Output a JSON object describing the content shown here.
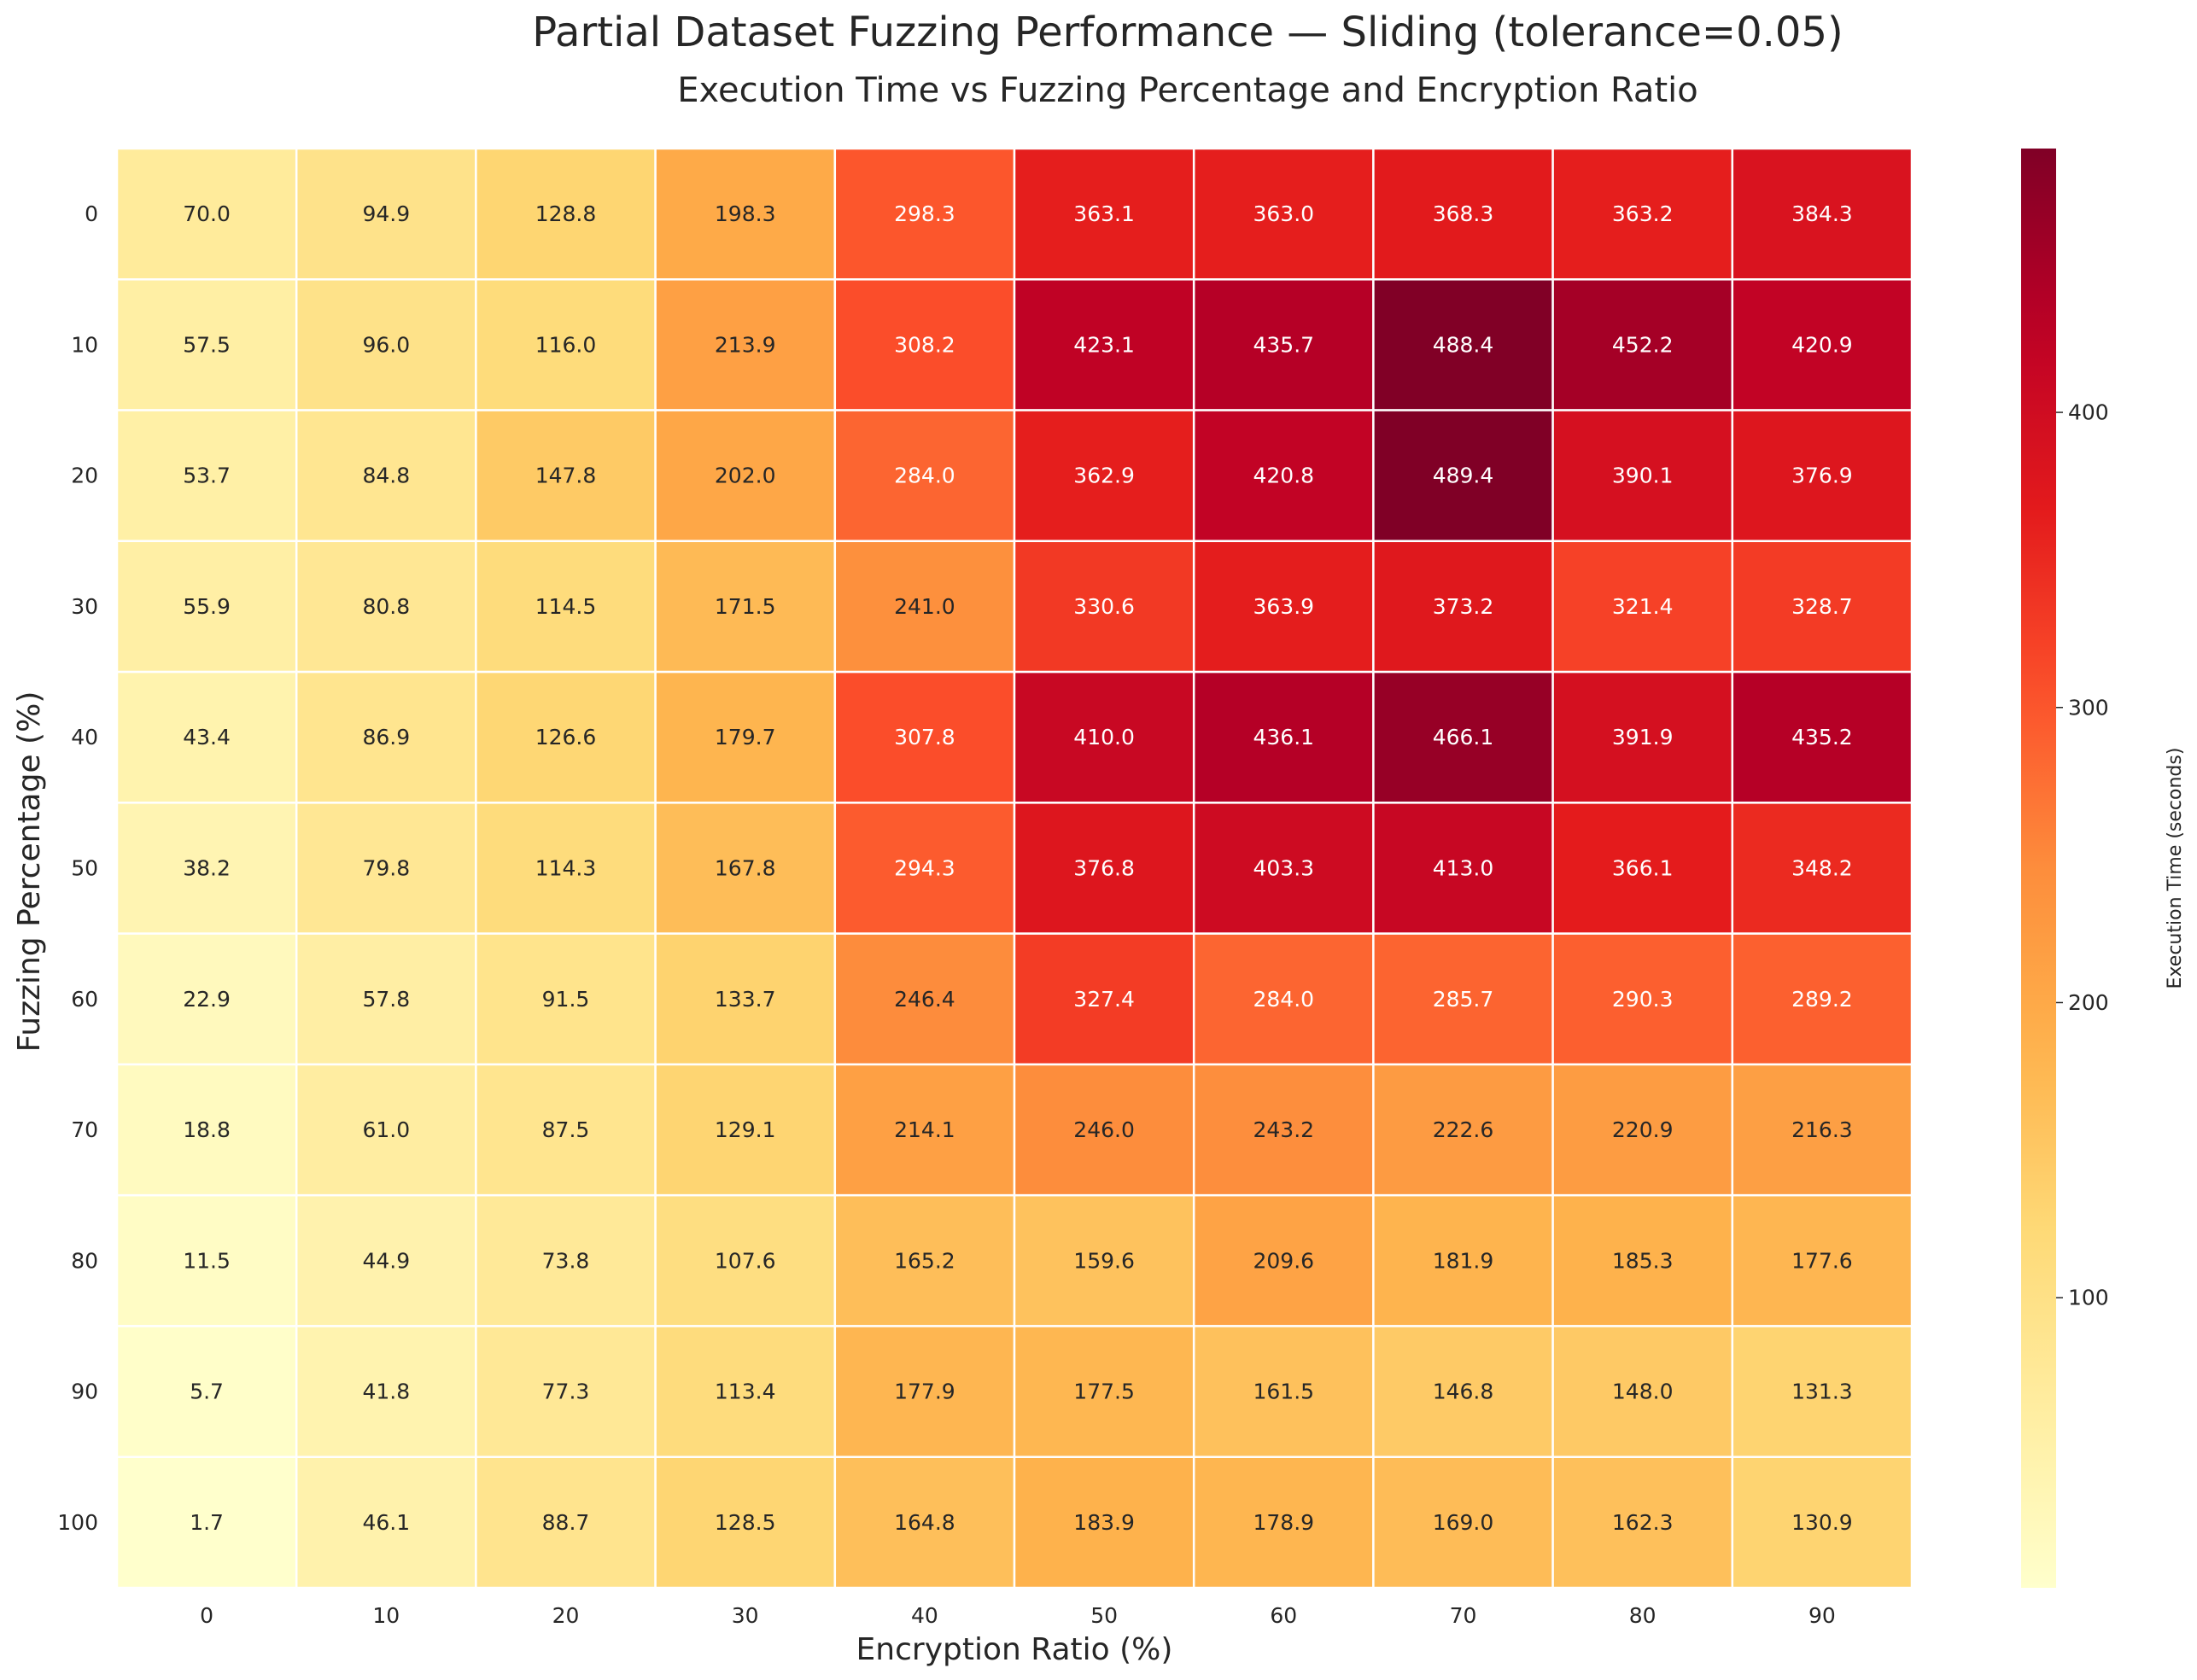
{
  "chart_data": {
    "type": "heatmap",
    "title": "Partial Dataset Fuzzing Performance — Sliding (tolerance=0.05)",
    "subtitle": "Execution Time vs Fuzzing Percentage and Encryption Ratio",
    "xlabel": "Encryption Ratio (%)",
    "ylabel": "Fuzzing Percentage (%)",
    "colorbar_label": "Execution Time (seconds)",
    "colorbar_ticks": [
      100,
      200,
      300,
      400
    ],
    "colormap": "YlOrRd",
    "color_range": [
      1.7,
      489.4
    ],
    "x_categories": [
      "0",
      "10",
      "20",
      "30",
      "40",
      "50",
      "60",
      "70",
      "80",
      "90"
    ],
    "y_categories": [
      "0",
      "10",
      "20",
      "30",
      "40",
      "50",
      "60",
      "70",
      "80",
      "90",
      "100"
    ],
    "values": [
      [
        70.0,
        94.9,
        128.8,
        198.3,
        298.3,
        363.1,
        363.0,
        368.3,
        363.2,
        384.3
      ],
      [
        57.5,
        96.0,
        116.0,
        213.9,
        308.2,
        423.1,
        435.7,
        488.4,
        452.2,
        420.9
      ],
      [
        53.7,
        84.8,
        147.8,
        202.0,
        284.0,
        362.9,
        420.8,
        489.4,
        390.1,
        376.9
      ],
      [
        55.9,
        80.8,
        114.5,
        171.5,
        241.0,
        330.6,
        363.9,
        373.2,
        321.4,
        328.7
      ],
      [
        43.4,
        86.9,
        126.6,
        179.7,
        307.8,
        410.0,
        436.1,
        466.1,
        391.9,
        435.2
      ],
      [
        38.2,
        79.8,
        114.3,
        167.8,
        294.3,
        376.8,
        403.3,
        413.0,
        366.1,
        348.2
      ],
      [
        22.9,
        57.8,
        91.5,
        133.7,
        246.4,
        327.4,
        284.0,
        285.7,
        290.3,
        289.2
      ],
      [
        18.8,
        61.0,
        87.5,
        129.1,
        214.1,
        246.0,
        243.2,
        222.6,
        220.9,
        216.3
      ],
      [
        11.5,
        44.9,
        73.8,
        107.6,
        165.2,
        159.6,
        209.6,
        181.9,
        185.3,
        177.6
      ],
      [
        5.7,
        41.8,
        77.3,
        113.4,
        177.9,
        177.5,
        161.5,
        146.8,
        148.0,
        131.3
      ],
      [
        1.7,
        46.1,
        88.7,
        128.5,
        164.8,
        183.9,
        178.9,
        169.0,
        162.3,
        130.9
      ]
    ],
    "value_format": "1 decimal",
    "grid": true,
    "legend": "colorbar-right"
  }
}
